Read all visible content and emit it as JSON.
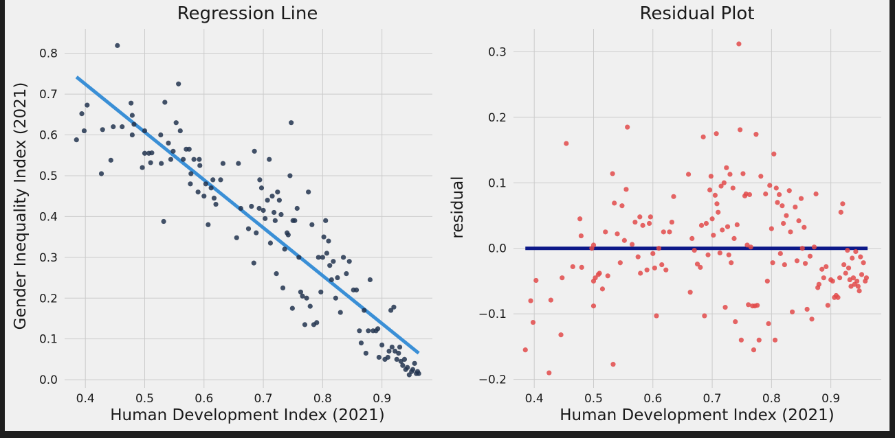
{
  "chart_data": [
    {
      "type": "scatter",
      "title": "Regression Line",
      "xlabel": "Human Development Index (2021)",
      "ylabel": "Gender Inequality Index (2021)",
      "xlim": [
        0.365,
        0.985
      ],
      "ylim": [
        -0.02,
        0.86
      ],
      "xticks": [
        "0.4",
        "0.5",
        "0.6",
        "0.7",
        "0.8",
        "0.9"
      ],
      "yticks": [
        "0.0",
        "0.1",
        "0.2",
        "0.3",
        "0.4",
        "0.5",
        "0.6",
        "0.7",
        "0.8"
      ],
      "grid": true,
      "point_color": "#22344f",
      "line_color": "#3a8fd6",
      "line": {
        "x": [
          0.385,
          0.962
        ],
        "y": [
          0.742,
          0.065
        ]
      },
      "points": [
        [
          0.385,
          0.588
        ],
        [
          0.394,
          0.652
        ],
        [
          0.398,
          0.61
        ],
        [
          0.403,
          0.673
        ],
        [
          0.427,
          0.505
        ],
        [
          0.429,
          0.613
        ],
        [
          0.443,
          0.538
        ],
        [
          0.447,
          0.62
        ],
        [
          0.454,
          0.819
        ],
        [
          0.462,
          0.62
        ],
        [
          0.477,
          0.678
        ],
        [
          0.479,
          0.648
        ],
        [
          0.479,
          0.6
        ],
        [
          0.482,
          0.626
        ],
        [
          0.496,
          0.52
        ],
        [
          0.5,
          0.61
        ],
        [
          0.5,
          0.555
        ],
        [
          0.507,
          0.555
        ],
        [
          0.51,
          0.532
        ],
        [
          0.512,
          0.556
        ],
        [
          0.527,
          0.6
        ],
        [
          0.528,
          0.53
        ],
        [
          0.532,
          0.388
        ],
        [
          0.534,
          0.68
        ],
        [
          0.54,
          0.58
        ],
        [
          0.544,
          0.54
        ],
        [
          0.548,
          0.56
        ],
        [
          0.553,
          0.63
        ],
        [
          0.557,
          0.725
        ],
        [
          0.56,
          0.61
        ],
        [
          0.565,
          0.54
        ],
        [
          0.57,
          0.565
        ],
        [
          0.575,
          0.565
        ],
        [
          0.577,
          0.48
        ],
        [
          0.578,
          0.505
        ],
        [
          0.583,
          0.54
        ],
        [
          0.59,
          0.46
        ],
        [
          0.592,
          0.54
        ],
        [
          0.593,
          0.525
        ],
        [
          0.6,
          0.45
        ],
        [
          0.603,
          0.48
        ],
        [
          0.607,
          0.38
        ],
        [
          0.612,
          0.47
        ],
        [
          0.615,
          0.49
        ],
        [
          0.617,
          0.445
        ],
        [
          0.62,
          0.43
        ],
        [
          0.628,
          0.49
        ],
        [
          0.632,
          0.53
        ],
        [
          0.655,
          0.348
        ],
        [
          0.658,
          0.53
        ],
        [
          0.662,
          0.42
        ],
        [
          0.675,
          0.37
        ],
        [
          0.68,
          0.425
        ],
        [
          0.684,
          0.286
        ],
        [
          0.685,
          0.56
        ],
        [
          0.688,
          0.36
        ],
        [
          0.693,
          0.42
        ],
        [
          0.694,
          0.49
        ],
        [
          0.697,
          0.47
        ],
        [
          0.7,
          0.415
        ],
        [
          0.703,
          0.395
        ],
        [
          0.707,
          0.44
        ],
        [
          0.71,
          0.54
        ],
        [
          0.712,
          0.335
        ],
        [
          0.715,
          0.45
        ],
        [
          0.718,
          0.41
        ],
        [
          0.72,
          0.39
        ],
        [
          0.722,
          0.26
        ],
        [
          0.724,
          0.46
        ],
        [
          0.727,
          0.44
        ],
        [
          0.73,
          0.405
        ],
        [
          0.733,
          0.225
        ],
        [
          0.736,
          0.32
        ],
        [
          0.74,
          0.36
        ],
        [
          0.742,
          0.355
        ],
        [
          0.745,
          0.5
        ],
        [
          0.747,
          0.63
        ],
        [
          0.749,
          0.175
        ],
        [
          0.75,
          0.39
        ],
        [
          0.753,
          0.39
        ],
        [
          0.757,
          0.42
        ],
        [
          0.76,
          0.3
        ],
        [
          0.763,
          0.215
        ],
        [
          0.766,
          0.205
        ],
        [
          0.77,
          0.135
        ],
        [
          0.773,
          0.2
        ],
        [
          0.776,
          0.46
        ],
        [
          0.779,
          0.18
        ],
        [
          0.782,
          0.38
        ],
        [
          0.785,
          0.135
        ],
        [
          0.79,
          0.14
        ],
        [
          0.793,
          0.3
        ],
        [
          0.797,
          0.215
        ],
        [
          0.8,
          0.3
        ],
        [
          0.802,
          0.35
        ],
        [
          0.805,
          0.39
        ],
        [
          0.807,
          0.31
        ],
        [
          0.81,
          0.34
        ],
        [
          0.812,
          0.28
        ],
        [
          0.815,
          0.245
        ],
        [
          0.818,
          0.29
        ],
        [
          0.822,
          0.2
        ],
        [
          0.825,
          0.25
        ],
        [
          0.83,
          0.165
        ],
        [
          0.835,
          0.3
        ],
        [
          0.84,
          0.26
        ],
        [
          0.845,
          0.29
        ],
        [
          0.852,
          0.22
        ],
        [
          0.857,
          0.22
        ],
        [
          0.862,
          0.12
        ],
        [
          0.865,
          0.09
        ],
        [
          0.87,
          0.17
        ],
        [
          0.873,
          0.065
        ],
        [
          0.877,
          0.12
        ],
        [
          0.88,
          0.245
        ],
        [
          0.885,
          0.12
        ],
        [
          0.89,
          0.12
        ],
        [
          0.893,
          0.125
        ],
        [
          0.895,
          0.055
        ],
        [
          0.9,
          0.085
        ],
        [
          0.905,
          0.05
        ],
        [
          0.91,
          0.055
        ],
        [
          0.912,
          0.07
        ],
        [
          0.915,
          0.17
        ],
        [
          0.917,
          0.08
        ],
        [
          0.92,
          0.178
        ],
        [
          0.922,
          0.07
        ],
        [
          0.925,
          0.05
        ],
        [
          0.928,
          0.065
        ],
        [
          0.93,
          0.08
        ],
        [
          0.932,
          0.045
        ],
        [
          0.935,
          0.035
        ],
        [
          0.938,
          0.05
        ],
        [
          0.94,
          0.025
        ],
        [
          0.943,
          0.03
        ],
        [
          0.946,
          0.012
        ],
        [
          0.95,
          0.02
        ],
        [
          0.952,
          0.025
        ],
        [
          0.955,
          0.04
        ],
        [
          0.958,
          0.015
        ],
        [
          0.96,
          0.02
        ],
        [
          0.962,
          0.015
        ]
      ]
    },
    {
      "type": "scatter",
      "title": "Residual Plot",
      "xlabel": "Human Development Index (2021)",
      "ylabel": "residual",
      "xlim": [
        0.365,
        0.985
      ],
      "ylim": [
        -0.213,
        0.335
      ],
      "xticks": [
        "0.4",
        "0.5",
        "0.6",
        "0.7",
        "0.8",
        "0.9"
      ],
      "yticks": [
        "0.3",
        "0.2",
        "0.1",
        "0.0",
        "−0.1",
        "−0.2"
      ],
      "ytick_values": [
        0.3,
        0.2,
        0.1,
        0.0,
        -0.1,
        -0.2
      ],
      "grid": true,
      "point_color": "#e24a4a",
      "line_color": "#0c1888",
      "line": {
        "x": [
          0.385,
          0.962
        ],
        "y": [
          0.0,
          0.0
        ]
      },
      "points": [
        [
          0.385,
          -0.155
        ],
        [
          0.394,
          -0.08
        ],
        [
          0.398,
          -0.113
        ],
        [
          0.403,
          -0.049
        ],
        [
          0.425,
          -0.19
        ],
        [
          0.428,
          -0.079
        ],
        [
          0.445,
          -0.132
        ],
        [
          0.447,
          -0.045
        ],
        [
          0.454,
          0.16
        ],
        [
          0.465,
          -0.028
        ],
        [
          0.477,
          0.045
        ],
        [
          0.479,
          0.019
        ],
        [
          0.48,
          -0.029
        ],
        [
          0.497,
          0.0
        ],
        [
          0.5,
          -0.088
        ],
        [
          0.5,
          0.005
        ],
        [
          0.5,
          -0.05
        ],
        [
          0.503,
          -0.045
        ],
        [
          0.508,
          -0.04
        ],
        [
          0.51,
          -0.038
        ],
        [
          0.515,
          -0.062
        ],
        [
          0.52,
          0.025
        ],
        [
          0.524,
          -0.042
        ],
        [
          0.532,
          0.114
        ],
        [
          0.533,
          -0.177
        ],
        [
          0.535,
          0.069
        ],
        [
          0.54,
          0.022
        ],
        [
          0.545,
          -0.022
        ],
        [
          0.548,
          0.065
        ],
        [
          0.552,
          0.012
        ],
        [
          0.555,
          0.09
        ],
        [
          0.557,
          0.185
        ],
        [
          0.565,
          0.006
        ],
        [
          0.57,
          0.04
        ],
        [
          0.575,
          -0.013
        ],
        [
          0.578,
          0.048
        ],
        [
          0.579,
          -0.038
        ],
        [
          0.583,
          0.035
        ],
        [
          0.59,
          -0.033
        ],
        [
          0.594,
          0.038
        ],
        [
          0.596,
          0.048
        ],
        [
          0.6,
          -0.008
        ],
        [
          0.603,
          -0.03
        ],
        [
          0.606,
          -0.103
        ],
        [
          0.61,
          0.0
        ],
        [
          0.615,
          -0.025
        ],
        [
          0.618,
          0.025
        ],
        [
          0.622,
          -0.033
        ],
        [
          0.628,
          0.025
        ],
        [
          0.632,
          0.04
        ],
        [
          0.635,
          0.079
        ],
        [
          0.66,
          0.113
        ],
        [
          0.663,
          -0.067
        ],
        [
          0.666,
          0.015
        ],
        [
          0.67,
          -0.003
        ],
        [
          0.675,
          -0.024
        ],
        [
          0.68,
          -0.029
        ],
        [
          0.682,
          0.035
        ],
        [
          0.685,
          0.17
        ],
        [
          0.687,
          -0.103
        ],
        [
          0.69,
          0.038
        ],
        [
          0.693,
          -0.01
        ],
        [
          0.696,
          0.089
        ],
        [
          0.698,
          0.11
        ],
        [
          0.7,
          0.045
        ],
        [
          0.702,
          0.02
        ],
        [
          0.705,
          0.081
        ],
        [
          0.707,
          0.175
        ],
        [
          0.708,
          0.068
        ],
        [
          0.71,
          0.055
        ],
        [
          0.713,
          -0.007
        ],
        [
          0.715,
          0.095
        ],
        [
          0.717,
          0.028
        ],
        [
          0.72,
          0.1
        ],
        [
          0.722,
          -0.09
        ],
        [
          0.724,
          0.123
        ],
        [
          0.726,
          0.033
        ],
        [
          0.728,
          -0.01
        ],
        [
          0.73,
          0.113
        ],
        [
          0.732,
          -0.022
        ],
        [
          0.735,
          0.092
        ],
        [
          0.737,
          0.015
        ],
        [
          0.739,
          -0.112
        ],
        [
          0.742,
          0.036
        ],
        [
          0.745,
          0.312
        ],
        [
          0.747,
          0.181
        ],
        [
          0.749,
          -0.14
        ],
        [
          0.752,
          0.114
        ],
        [
          0.755,
          0.08
        ],
        [
          0.757,
          0.083
        ],
        [
          0.759,
          0.005
        ],
        [
          0.761,
          -0.086
        ],
        [
          0.763,
          0.082
        ],
        [
          0.765,
          0.002
        ],
        [
          0.768,
          -0.088
        ],
        [
          0.77,
          -0.155
        ],
        [
          0.772,
          -0.088
        ],
        [
          0.774,
          0.174
        ],
        [
          0.776,
          -0.087
        ],
        [
          0.779,
          -0.14
        ],
        [
          0.782,
          0.11
        ],
        [
          0.79,
          0.083
        ],
        [
          0.793,
          -0.05
        ],
        [
          0.795,
          -0.115
        ],
        [
          0.797,
          0.096
        ],
        [
          0.8,
          0.03
        ],
        [
          0.802,
          -0.022
        ],
        [
          0.804,
          0.144
        ],
        [
          0.806,
          -0.14
        ],
        [
          0.808,
          0.092
        ],
        [
          0.81,
          0.07
        ],
        [
          0.813,
          0.082
        ],
        [
          0.815,
          -0.008
        ],
        [
          0.818,
          0.065
        ],
        [
          0.82,
          0.038
        ],
        [
          0.822,
          -0.025
        ],
        [
          0.825,
          0.05
        ],
        [
          0.83,
          0.088
        ],
        [
          0.832,
          0.025
        ],
        [
          0.835,
          -0.097
        ],
        [
          0.84,
          0.063
        ],
        [
          0.843,
          -0.019
        ],
        [
          0.846,
          0.042
        ],
        [
          0.85,
          0.076
        ],
        [
          0.852,
          0.0
        ],
        [
          0.855,
          0.032
        ],
        [
          0.857,
          -0.023
        ],
        [
          0.86,
          -0.093
        ],
        [
          0.865,
          -0.012
        ],
        [
          0.868,
          -0.108
        ],
        [
          0.872,
          0.002
        ],
        [
          0.875,
          0.083
        ],
        [
          0.878,
          -0.06
        ],
        [
          0.88,
          -0.055
        ],
        [
          0.885,
          -0.032
        ],
        [
          0.888,
          -0.045
        ],
        [
          0.892,
          -0.028
        ],
        [
          0.895,
          -0.087
        ],
        [
          0.9,
          -0.048
        ],
        [
          0.903,
          -0.05
        ],
        [
          0.906,
          -0.075
        ],
        [
          0.909,
          -0.072
        ],
        [
          0.912,
          -0.075
        ],
        [
          0.915,
          -0.045
        ],
        [
          0.917,
          0.055
        ],
        [
          0.92,
          0.068
        ],
        [
          0.922,
          -0.025
        ],
        [
          0.925,
          -0.038
        ],
        [
          0.928,
          -0.003
        ],
        [
          0.93,
          -0.03
        ],
        [
          0.932,
          -0.048
        ],
        [
          0.934,
          -0.058
        ],
        [
          0.936,
          -0.015
        ],
        [
          0.938,
          -0.045
        ],
        [
          0.94,
          -0.055
        ],
        [
          0.942,
          -0.005
        ],
        [
          0.944,
          -0.05
        ],
        [
          0.946,
          -0.058
        ],
        [
          0.948,
          -0.065
        ],
        [
          0.95,
          -0.013
        ],
        [
          0.952,
          -0.04
        ],
        [
          0.955,
          -0.022
        ],
        [
          0.958,
          -0.05
        ],
        [
          0.96,
          -0.045
        ]
      ]
    }
  ]
}
